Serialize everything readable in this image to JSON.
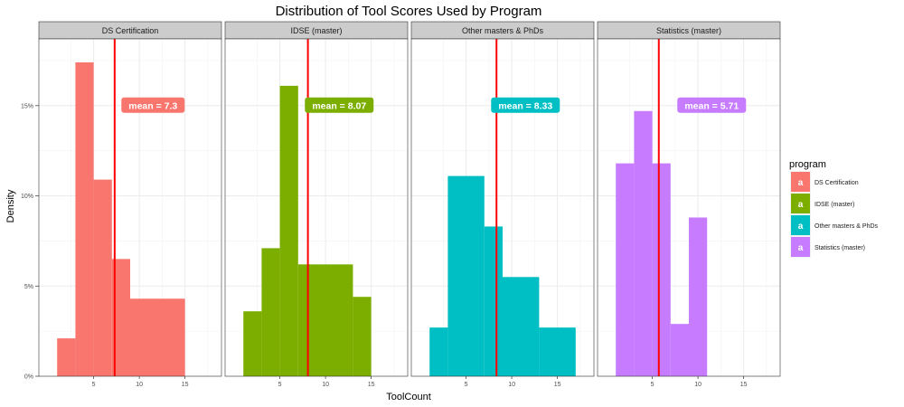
{
  "chart_data": {
    "type": "bar",
    "title": "Distribution of Tool Scores Used by Program",
    "xlabel": "ToolCount",
    "ylabel": "Density",
    "xlim": [
      -1,
      19
    ],
    "ylim": [
      0,
      0.187
    ],
    "x_ticks": [
      5,
      10,
      15
    ],
    "x_tick_labels": [
      "5",
      "10",
      "15"
    ],
    "y_ticks": [
      0,
      0.05,
      0.1,
      0.15
    ],
    "y_tick_labels": [
      "0%",
      "5%",
      "10%",
      "15%"
    ],
    "grid": true,
    "legend": {
      "title": "program",
      "placement": "right",
      "key_glyph": "a",
      "entries": [
        "DS Certification",
        "IDSE (master)",
        "Other masters & PhDs",
        "Statistics (master)"
      ]
    },
    "mean_line_color": "#ff0000",
    "facets": [
      {
        "name": "DS Certification",
        "color": "#f8766d",
        "mean": 7.3,
        "mean_label": "mean =  7.3",
        "bins": [
          {
            "x0": 1,
            "x1": 3,
            "density": 0.021
          },
          {
            "x0": 3,
            "x1": 5,
            "density": 0.174
          },
          {
            "x0": 5,
            "x1": 7,
            "density": 0.109
          },
          {
            "x0": 7,
            "x1": 9,
            "density": 0.065
          },
          {
            "x0": 9,
            "x1": 15,
            "density": 0.043
          }
        ]
      },
      {
        "name": "IDSE (master)",
        "color": "#7cae00",
        "mean": 8.07,
        "mean_label": "mean =  8.07",
        "bins": [
          {
            "x0": 1,
            "x1": 3,
            "density": 0.036
          },
          {
            "x0": 3,
            "x1": 5,
            "density": 0.071
          },
          {
            "x0": 5,
            "x1": 7,
            "density": 0.161
          },
          {
            "x0": 7,
            "x1": 13,
            "density": 0.062
          },
          {
            "x0": 13,
            "x1": 15,
            "density": 0.044
          }
        ]
      },
      {
        "name": "Other masters & PhDs",
        "color": "#00bfc4",
        "mean": 8.33,
        "mean_label": "mean =  8.33",
        "bins": [
          {
            "x0": 1,
            "x1": 3,
            "density": 0.027
          },
          {
            "x0": 3,
            "x1": 7,
            "density": 0.111
          },
          {
            "x0": 7,
            "x1": 9,
            "density": 0.083
          },
          {
            "x0": 9,
            "x1": 13,
            "density": 0.055
          },
          {
            "x0": 13,
            "x1": 17,
            "density": 0.027
          }
        ]
      },
      {
        "name": "Statistics (master)",
        "color": "#c77cff",
        "mean": 5.71,
        "mean_label": "mean =  5.71",
        "bins": [
          {
            "x0": 1,
            "x1": 3,
            "density": 0.118
          },
          {
            "x0": 3,
            "x1": 5,
            "density": 0.147
          },
          {
            "x0": 5,
            "x1": 7,
            "density": 0.118
          },
          {
            "x0": 7,
            "x1": 9,
            "density": 0.029
          },
          {
            "x0": 9,
            "x1": 11,
            "density": 0.088
          }
        ]
      }
    ]
  }
}
